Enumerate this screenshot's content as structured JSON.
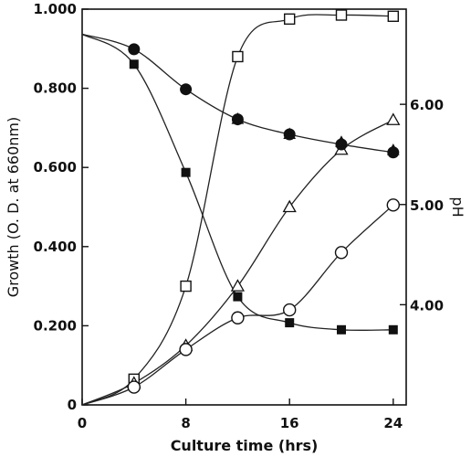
{
  "chart_data": {
    "type": "line",
    "title": "",
    "xlabel": "Culture time (hrs)",
    "ylabel": "Growth (O. D. at 660nm)",
    "y2label": "pH",
    "xlim": [
      0,
      25
    ],
    "ylim": [
      0,
      1.0
    ],
    "y2lim": [
      3.0,
      6.95
    ],
    "x_ticks": [
      0,
      8,
      16,
      24
    ],
    "x_tick_labels": [
      "0",
      "8",
      "16",
      "24"
    ],
    "y_ticks": [
      0,
      0.2,
      0.4,
      0.6,
      0.8,
      1.0
    ],
    "y_tick_labels": [
      "0",
      "0.200",
      "0.400",
      "0.600",
      "0.800",
      "1.000"
    ],
    "y2_ticks": [
      4.0,
      5.0,
      6.0
    ],
    "y2_tick_labels": [
      "4.00",
      "5.00",
      "6.00"
    ],
    "grid": false,
    "legend": "none",
    "series": [
      {
        "axis": "left",
        "marker": "open-square",
        "x": [
          4,
          8,
          12,
          16,
          20,
          24
        ],
        "y": [
          0.065,
          0.3,
          0.88,
          0.975,
          0.985,
          0.982
        ]
      },
      {
        "axis": "left",
        "marker": "open-triangle",
        "x": [
          4,
          8,
          12,
          16,
          20,
          24
        ],
        "y": [
          0.055,
          0.15,
          0.3,
          0.5,
          0.645,
          0.72
        ]
      },
      {
        "axis": "left",
        "marker": "open-circle",
        "x": [
          4,
          8,
          12,
          16,
          20,
          24
        ],
        "y": [
          0.045,
          0.14,
          0.22,
          0.24,
          0.385,
          0.505
        ]
      },
      {
        "axis": "right",
        "marker": "filled-circle",
        "x": [
          4,
          8,
          12,
          16,
          20,
          24
        ],
        "y": [
          6.55,
          6.15,
          5.85,
          5.7,
          5.6,
          5.52
        ]
      },
      {
        "axis": "right",
        "marker": "filled-triangle",
        "x": [
          12,
          16,
          20,
          24
        ],
        "y": [
          5.85,
          5.7,
          5.62,
          5.54
        ]
      },
      {
        "axis": "right",
        "marker": "filled-square",
        "x": [
          4,
          8,
          12,
          16,
          20,
          24
        ],
        "y": [
          6.4,
          5.32,
          4.08,
          3.82,
          3.75,
          3.75
        ]
      }
    ],
    "start_point": {
      "x": 0,
      "y_left": 0,
      "y_right": 6.7
    }
  }
}
